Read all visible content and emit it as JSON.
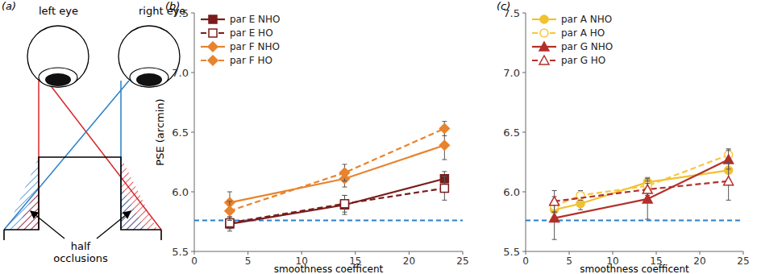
{
  "diagram": {
    "panel_label": "(a)",
    "left_eye": "left eye",
    "right_eye": "right eye",
    "half_occlusions": [
      "half",
      "occlusions"
    ]
  },
  "chart_data": [
    {
      "type": "line",
      "panel_label": "(b)",
      "x_label": "smoothness coefficent",
      "y_label": "PSE (arcmin)",
      "xlim": [
        0,
        25
      ],
      "xticks": [
        0,
        5,
        10,
        15,
        20,
        25
      ],
      "ylim": [
        5.5,
        7.5
      ],
      "yticks": [
        5.5,
        {
          "value": 6,
          "label": "6.0"
        },
        6.5,
        {
          "value": 7,
          "label": "7.0"
        },
        7.5
      ],
      "grid": false,
      "legend": "upper left",
      "reference_value": 5.76,
      "series": [
        {
          "name": "par E NHO",
          "color": "#7a1c1c",
          "marker": "square",
          "line_style": "solid",
          "x": [
            3.3,
            14,
            23.3
          ],
          "values": [
            5.73,
            5.89,
            6.11
          ],
          "errors": [
            0.06,
            0.08,
            0.06
          ]
        },
        {
          "name": "par E HO",
          "color": "#7a1c1c",
          "marker": "open-square",
          "line_style": "dashed",
          "x": [
            3.3,
            14,
            23.3
          ],
          "values": [
            5.74,
            5.9,
            6.03
          ],
          "errors": [
            0.05,
            0.07,
            0.1
          ]
        },
        {
          "name": "par F NHO",
          "color": "#e8832e",
          "marker": "diamond",
          "line_style": "solid",
          "x": [
            3.3,
            14,
            23.3
          ],
          "values": [
            5.91,
            6.11,
            6.39
          ],
          "errors": [
            0.09,
            0.07,
            0.12
          ]
        },
        {
          "name": "par F HO",
          "color": "#e8832e",
          "marker": "diamond",
          "line_style": "dashed",
          "x": [
            3.3,
            14,
            23.3
          ],
          "values": [
            5.84,
            6.16,
            6.53
          ],
          "errors": [
            0.08,
            0.07,
            0.06
          ]
        }
      ]
    },
    {
      "type": "line",
      "panel_label": "(c)",
      "x_label": "smoothness coefficent",
      "xlim": [
        0,
        25
      ],
      "xticks": [
        0,
        5,
        10,
        15,
        20,
        25
      ],
      "ylim": [
        5.5,
        7.5
      ],
      "yticks": [
        5.5,
        {
          "value": 6,
          "label": "6.0"
        },
        6.5,
        {
          "value": 7,
          "label": "7.0"
        },
        7.5
      ],
      "grid": false,
      "legend": "upper left",
      "reference_value": 5.76,
      "series": [
        {
          "name": "par A NHO",
          "color": "#f2c12e",
          "marker": "circle",
          "line_style": "solid",
          "x": [
            3.3,
            6.3,
            14,
            23.3
          ],
          "values": [
            5.85,
            5.9,
            6.08,
            6.18
          ],
          "errors": [
            0.06,
            0.05,
            0.04,
            0.08
          ]
        },
        {
          "name": "par A HO",
          "color": "#f5c840",
          "marker": "open-circle",
          "line_style": "dashed",
          "x": [
            3.3,
            6.3,
            14,
            23.3
          ],
          "values": [
            5.88,
            5.97,
            6.05,
            6.31
          ],
          "errors": [
            0.05,
            0.04,
            0.04,
            0.05
          ]
        },
        {
          "name": "par G NHO",
          "color": "#b3302a",
          "marker": "triangle",
          "line_style": "solid",
          "x": [
            3.3,
            14,
            23.3
          ],
          "values": [
            5.78,
            5.94,
            6.27
          ],
          "errors": [
            0.18,
            0.17,
            0.08
          ]
        },
        {
          "name": "par G HO",
          "color": "#b3302a",
          "marker": "open-triangle",
          "line_style": "dashed",
          "x": [
            3.3,
            14,
            23.3
          ],
          "values": [
            5.92,
            6.02,
            6.09
          ],
          "errors": [
            0.09,
            0.05,
            0.16
          ]
        }
      ]
    }
  ]
}
